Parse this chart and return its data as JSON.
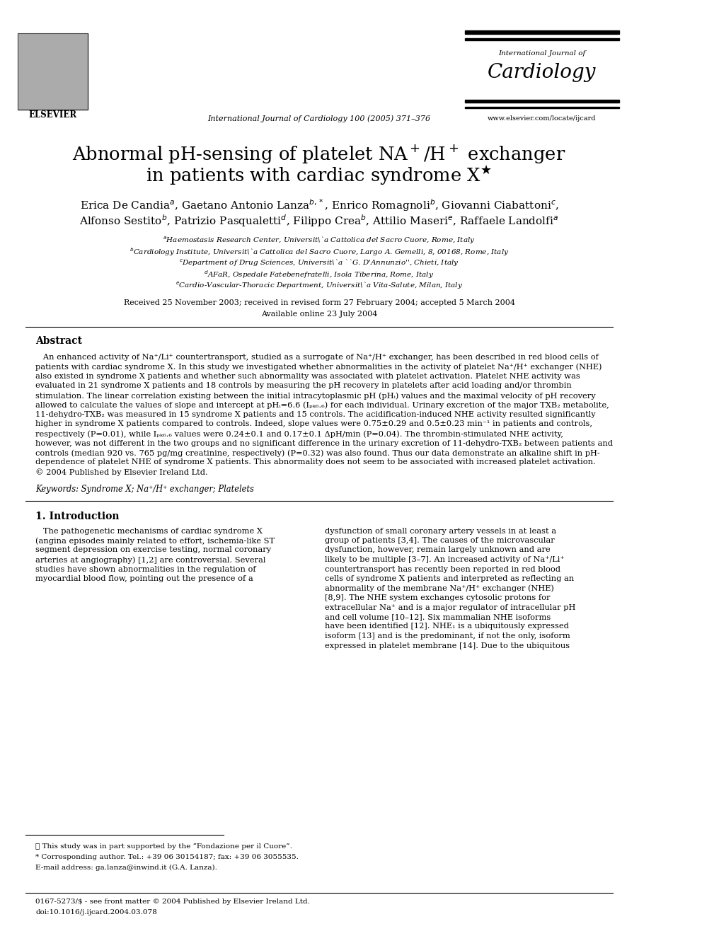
{
  "journal_name": "International Journal of Cardiology 100 (2005) 371–376",
  "journal_header_small": "International Journal of",
  "journal_header_large": "Cardiology",
  "journal_url": "www.elsevier.com/locate/ijcard",
  "received": "Received 25 November 2003; received in revised form 27 February 2004; accepted 5 March 2004",
  "available": "Available online 23 July 2004",
  "abstract_title": "Abstract",
  "keywords": "Keywords: Syndrome X; Na⁺/H⁺ exchanger; Platelets",
  "section1_title": "1. Introduction",
  "footnote1": "★ This study was in part supported by the “Fondazione per il Cuore”.",
  "footnote2": "* Corresponding author. Tel.: +39 06 30154187; fax: +39 06 3055535.",
  "footnote3": "E-mail address: ga.lanza@inwind.it (G.A. Lanza).",
  "footer_left": "0167-5273/$ - see front matter © 2004 Published by Elsevier Ireland Ltd.",
  "footer_doi": "doi:10.1016/j.ijcard.2004.03.078",
  "bg_color": "#ffffff",
  "text_color": "#000000",
  "abstract_lines": [
    "   An enhanced activity of Na⁺/Li⁺ countertransport, studied as a surrogate of Na⁺/H⁺ exchanger, has been described in red blood cells of",
    "patients with cardiac syndrome X. In this study we investigated whether abnormalities in the activity of platelet Na⁺/H⁺ exchanger (NHE)",
    "also existed in syndrome X patients and whether such abnormality was associated with platelet activation. Platelet NHE activity was",
    "evaluated in 21 syndrome X patients and 18 controls by measuring the pH recovery in platelets after acid loading and/or thrombin",
    "stimulation. The linear correlation existing between the initial intracytoplasmic pH (pHᵢ) values and the maximal velocity of pH recovery",
    "allowed to calculate the values of slope and intercept at pHᵢ=6.6 (Iₚₖ₆.₆) for each individual. Urinary excretion of the major TXB₂ metabolite,",
    "11-dehydro-TXB₂ was measured in 15 syndrome X patients and 15 controls. The acidification-induced NHE activity resulted significantly",
    "higher in syndrome X patients compared to controls. Indeed, slope values were 0.75±0.29 and 0.5±0.23 min⁻¹ in patients and controls,",
    "respectively (P=0.01), while Iₚₖ₆.₆ values were 0.24±0.1 and 0.17±0.1 ΔpH/min (P=0.04). The thrombin-stimulated NHE activity,",
    "however, was not different in the two groups and no significant difference in the urinary excretion of 11-dehydro-TXB₂ between patients and",
    "controls (median 920 vs. 765 pg/mg creatinine, respectively) (P=0.32) was also found. Thus our data demonstrate an alkaline shift in pH-",
    "dependence of platelet NHE of syndrome X patients. This abnormality does not seem to be associated with increased platelet activation.",
    "© 2004 Published by Elsevier Ireland Ltd."
  ],
  "intro_left_lines": [
    "   The pathogenetic mechanisms of cardiac syndrome X",
    "(angina episodes mainly related to effort, ischemia-like ST",
    "segment depression on exercise testing, normal coronary",
    "arteries at angiography) [1,2] are controversial. Several",
    "studies have shown abnormalities in the regulation of",
    "myocardial blood flow, pointing out the presence of a"
  ],
  "intro_right_lines": [
    "dysfunction of small coronary artery vessels in at least a",
    "group of patients [3,4]. The causes of the microvascular",
    "dysfunction, however, remain largely unknown and are",
    "likely to be multiple [3–7]. An increased activity of Na⁺/Li⁺",
    "countertransport has recently been reported in red blood",
    "cells of syndrome X patients and interpreted as reflecting an",
    "abnormality of the membrane Na⁺/H⁺ exchanger (NHE)",
    "[8,9]. The NHE system exchanges cytosolic protons for",
    "extracellular Na⁺ and is a major regulator of intracellular pH",
    "and cell volume [10–12]. Six mammalian NHE isoforms",
    "have been identified [12]. NHE₁ is a ubiquitously expressed",
    "isoform [13] and is the predominant, if not the only, isoform",
    "expressed in platelet membrane [14]. Due to the ubiquitous"
  ]
}
